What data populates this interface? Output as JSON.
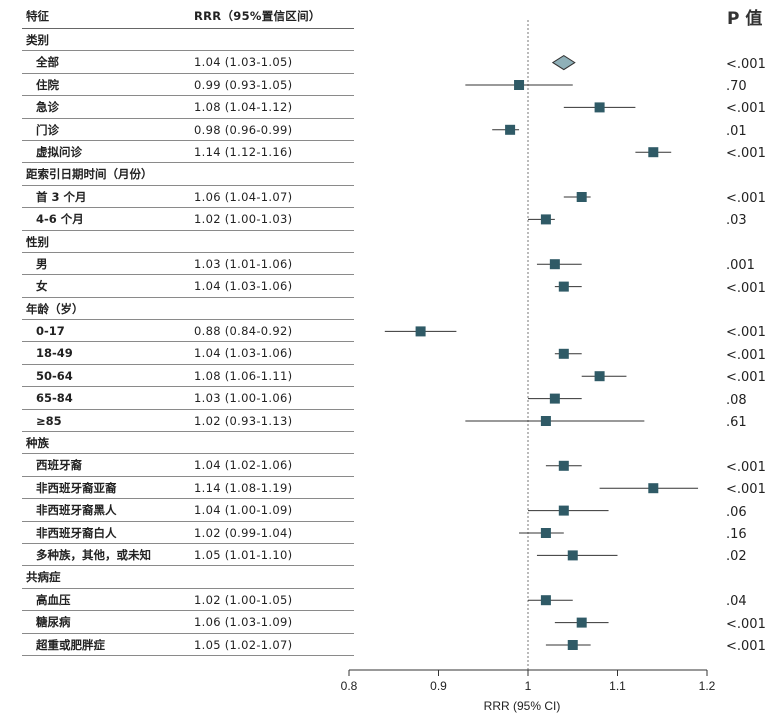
{
  "headers": {
    "feature": "特征",
    "rrr": "RRR（95%置信区间）",
    "p": "P 值"
  },
  "rows": [
    {
      "type": "group",
      "label": "类别"
    },
    {
      "type": "item",
      "label": "全部",
      "ci": "1.04 (1.03-1.05)",
      "est": 1.04,
      "lo": 1.03,
      "hi": 1.05,
      "p": "<.001",
      "marker": "diamond"
    },
    {
      "type": "item",
      "label": "住院",
      "ci": "0.99 (0.93-1.05)",
      "est": 0.99,
      "lo": 0.93,
      "hi": 1.05,
      "p": ".70"
    },
    {
      "type": "item",
      "label": "急诊",
      "ci": "1.08 (1.04-1.12)",
      "est": 1.08,
      "lo": 1.04,
      "hi": 1.12,
      "p": "<.001"
    },
    {
      "type": "item",
      "label": "门诊",
      "ci": "0.98 (0.96-0.99)",
      "est": 0.98,
      "lo": 0.96,
      "hi": 0.99,
      "p": ".01"
    },
    {
      "type": "item",
      "label": "虚拟问诊",
      "ci": "1.14 (1.12-1.16)",
      "est": 1.14,
      "lo": 1.12,
      "hi": 1.16,
      "p": "<.001"
    },
    {
      "type": "group",
      "label": "距索引日期时间（月份）"
    },
    {
      "type": "item",
      "label": "首 3 个月",
      "ci": "1.06 (1.04-1.07)",
      "est": 1.06,
      "lo": 1.04,
      "hi": 1.07,
      "p": "<.001"
    },
    {
      "type": "item",
      "label": "4-6 个月",
      "ci": "1.02 (1.00-1.03)",
      "est": 1.02,
      "lo": 1.0,
      "hi": 1.03,
      "p": ".03"
    },
    {
      "type": "group",
      "label": "性别"
    },
    {
      "type": "item",
      "label": "男",
      "ci": "1.03 (1.01-1.06)",
      "est": 1.03,
      "lo": 1.01,
      "hi": 1.06,
      "p": ".001"
    },
    {
      "type": "item",
      "label": "女",
      "ci": "1.04 (1.03-1.06)",
      "est": 1.04,
      "lo": 1.03,
      "hi": 1.06,
      "p": "<.001"
    },
    {
      "type": "group",
      "label": "年龄（岁）"
    },
    {
      "type": "item",
      "label": "0-17",
      "ci": "0.88 (0.84-0.92)",
      "est": 0.88,
      "lo": 0.84,
      "hi": 0.92,
      "p": "<.001"
    },
    {
      "type": "item",
      "label": "18-49",
      "ci": "1.04 (1.03-1.06)",
      "est": 1.04,
      "lo": 1.03,
      "hi": 1.06,
      "p": "<.001"
    },
    {
      "type": "item",
      "label": "50-64",
      "ci": "1.08 (1.06-1.11)",
      "est": 1.08,
      "lo": 1.06,
      "hi": 1.11,
      "p": "<.001"
    },
    {
      "type": "item",
      "label": "65-84",
      "ci": "1.03 (1.00-1.06)",
      "est": 1.03,
      "lo": 1.0,
      "hi": 1.06,
      "p": ".08"
    },
    {
      "type": "item",
      "label": "≥85",
      "ci": "1.02 (0.93-1.13)",
      "est": 1.02,
      "lo": 0.93,
      "hi": 1.13,
      "p": ".61"
    },
    {
      "type": "group",
      "label": "种族"
    },
    {
      "type": "item",
      "label": "西班牙裔",
      "ci": "1.04 (1.02-1.06)",
      "est": 1.04,
      "lo": 1.02,
      "hi": 1.06,
      "p": "<.001"
    },
    {
      "type": "item",
      "label": "非西班牙裔亚裔",
      "ci": "1.14 (1.08-1.19)",
      "est": 1.14,
      "lo": 1.08,
      "hi": 1.19,
      "p": "<.001"
    },
    {
      "type": "item",
      "label": "非西班牙裔黑人",
      "ci": "1.04 (1.00-1.09)",
      "est": 1.04,
      "lo": 1.0,
      "hi": 1.09,
      "p": ".06"
    },
    {
      "type": "item",
      "label": "非西班牙裔白人",
      "ci": "1.02 (0.99-1.04)",
      "est": 1.02,
      "lo": 0.99,
      "hi": 1.04,
      "p": ".16"
    },
    {
      "type": "item",
      "label": "多种族，其他，或未知",
      "ci": "1.05 (1.01-1.10)",
      "est": 1.05,
      "lo": 1.01,
      "hi": 1.1,
      "p": ".02"
    },
    {
      "type": "group",
      "label": "共病症"
    },
    {
      "type": "item",
      "label": "高血压",
      "ci": "1.02 (1.00-1.05)",
      "est": 1.02,
      "lo": 1.0,
      "hi": 1.05,
      "p": ".04"
    },
    {
      "type": "item",
      "label": "糖尿病",
      "ci": "1.06 (1.03-1.09)",
      "est": 1.06,
      "lo": 1.03,
      "hi": 1.09,
      "p": "<.001"
    },
    {
      "type": "item",
      "label": "超重或肥胖症",
      "ci": "1.05 (1.02-1.07)",
      "est": 1.05,
      "lo": 1.02,
      "hi": 1.07,
      "p": "<.001"
    }
  ],
  "chart_data": {
    "type": "forest",
    "xlabel": "RRR (95% CI)",
    "xlim": [
      0.8,
      1.2
    ],
    "xticks": [
      "0.8",
      "0.9",
      "1",
      "1.1",
      "1.2"
    ],
    "reference_line": 1,
    "marker_color": "#2f5a66",
    "diamond_color": "#8fb0b8"
  }
}
